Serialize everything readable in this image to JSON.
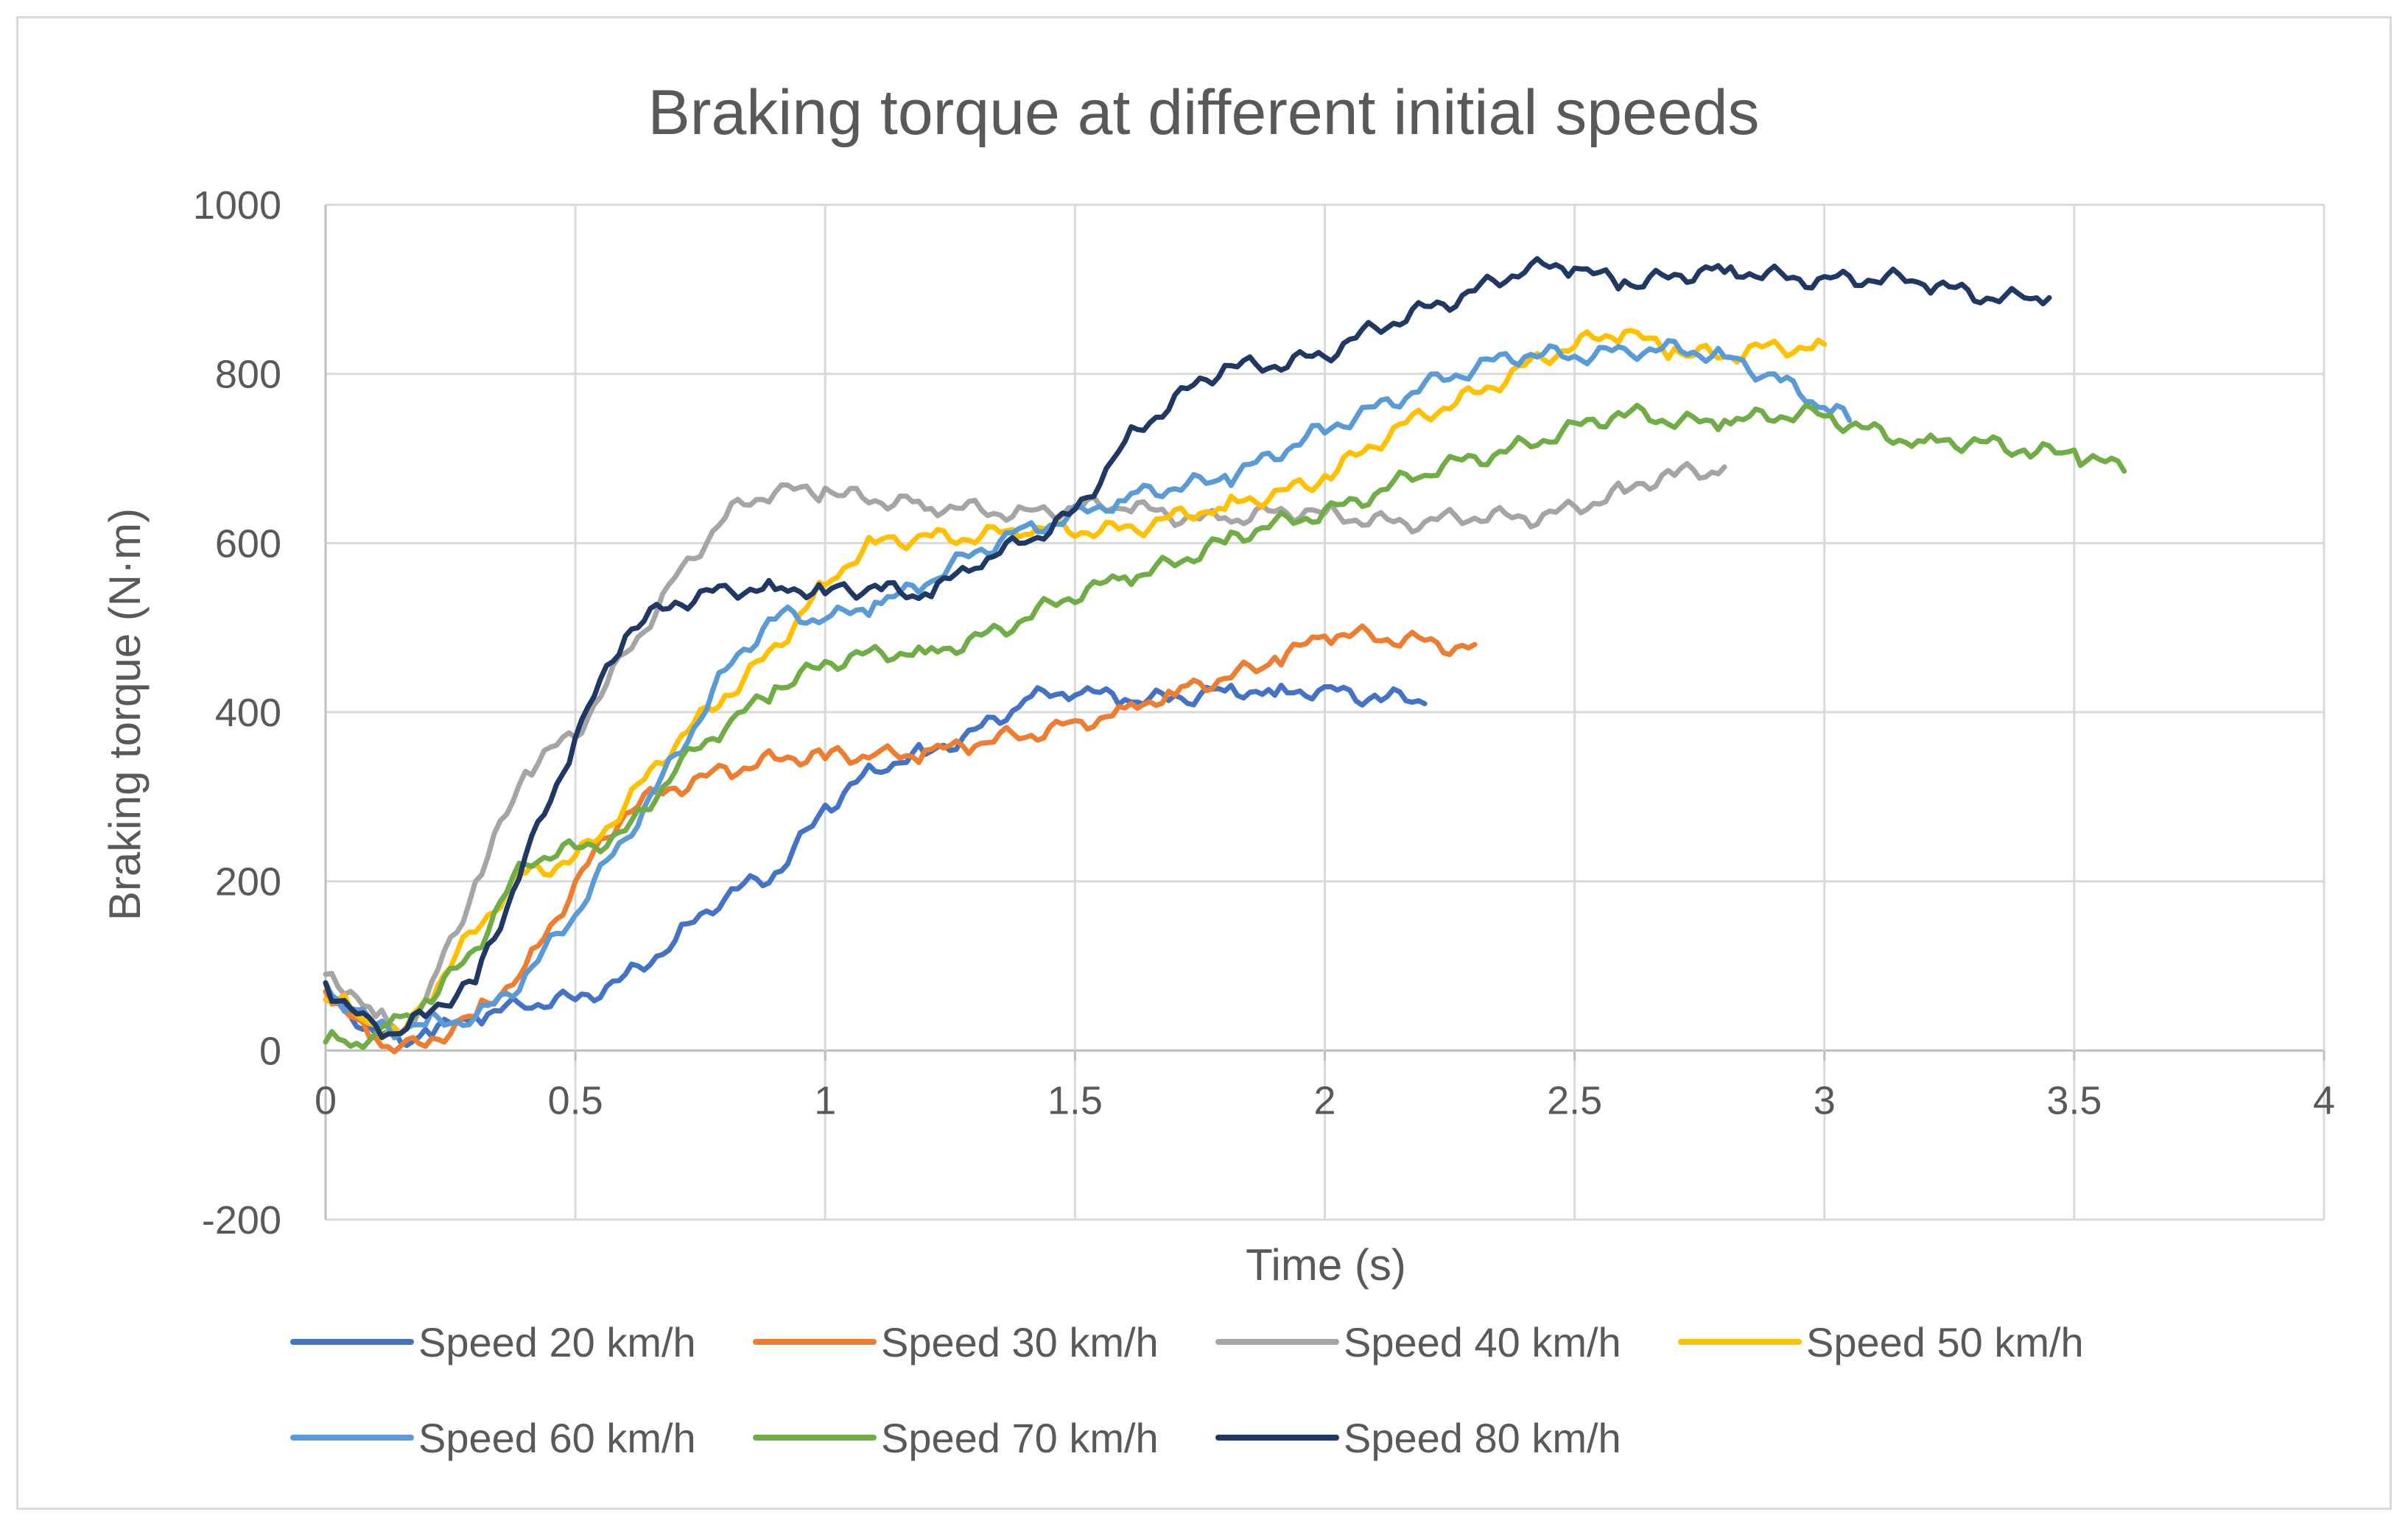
{
  "chart_data": {
    "type": "line",
    "title": "Braking torque at different initial speeds",
    "xlabel": "Time (s)",
    "ylabel": "Braking torque (N·m)",
    "xlim": [
      0,
      4
    ],
    "ylim": [
      -200,
      1000
    ],
    "x_ticks": [
      0,
      0.5,
      1,
      1.5,
      2,
      2.5,
      3,
      3.5,
      4
    ],
    "y_ticks": [
      -200,
      0,
      200,
      400,
      600,
      800,
      1000
    ],
    "x_tick_labels": [
      "0",
      "0.5",
      "1",
      "1.5",
      "2",
      "2.5",
      "3",
      "3.5",
      "4"
    ],
    "y_tick_labels": [
      "-200",
      "0",
      "200",
      "400",
      "600",
      "800",
      "1000"
    ],
    "grid": true,
    "legend_position": "bottom",
    "series": [
      {
        "name": "Speed 20 km/h",
        "color": "#4472c4",
        "x": [
          0,
          0.05,
          0.1,
          0.15,
          0.2,
          0.3,
          0.4,
          0.5,
          0.6,
          0.7,
          0.8,
          0.9,
          1.0,
          1.1,
          1.2,
          1.3,
          1.4,
          1.5,
          1.6,
          1.7,
          1.8,
          1.9,
          2.0,
          2.1,
          2.2
        ],
        "y": [
          60,
          40,
          20,
          10,
          25,
          40,
          50,
          60,
          90,
          130,
          180,
          210,
          290,
          330,
          350,
          380,
          415,
          420,
          415,
          420,
          425,
          420,
          430,
          420,
          410
        ]
      },
      {
        "name": "Speed 30 km/h",
        "color": "#ed7d31",
        "x": [
          0,
          0.05,
          0.1,
          0.15,
          0.2,
          0.3,
          0.4,
          0.5,
          0.6,
          0.7,
          0.8,
          0.9,
          1.0,
          1.1,
          1.2,
          1.3,
          1.4,
          1.5,
          1.6,
          1.7,
          1.8,
          1.9,
          2.0,
          2.1,
          2.2,
          2.3
        ],
        "y": [
          70,
          40,
          15,
          5,
          5,
          40,
          100,
          200,
          280,
          310,
          335,
          345,
          345,
          350,
          355,
          360,
          370,
          390,
          405,
          420,
          440,
          465,
          490,
          485,
          485,
          480
        ]
      },
      {
        "name": "Speed 40 km/h",
        "color": "#a5a5a5",
        "x": [
          0,
          0.05,
          0.1,
          0.15,
          0.2,
          0.3,
          0.4,
          0.5,
          0.6,
          0.7,
          0.8,
          0.9,
          1.0,
          1.2,
          1.4,
          1.6,
          1.8,
          2.0,
          2.2,
          2.4,
          2.6,
          2.7,
          2.8
        ],
        "y": [
          90,
          70,
          40,
          20,
          60,
          200,
          330,
          370,
          470,
          560,
          630,
          660,
          665,
          640,
          640,
          640,
          630,
          635,
          625,
          630,
          660,
          680,
          690
        ]
      },
      {
        "name": "Speed 50 km/h",
        "color": "#ffc000",
        "x": [
          0,
          0.05,
          0.1,
          0.15,
          0.2,
          0.3,
          0.4,
          0.5,
          0.6,
          0.7,
          0.8,
          0.9,
          1.0,
          1.1,
          1.2,
          1.4,
          1.6,
          1.8,
          2.0,
          2.2,
          2.4,
          2.6,
          2.7,
          2.8,
          3.0
        ],
        "y": [
          60,
          50,
          30,
          20,
          60,
          140,
          210,
          230,
          290,
          360,
          420,
          480,
          550,
          600,
          610,
          610,
          620,
          640,
          680,
          750,
          810,
          850,
          830,
          820,
          835
        ]
      },
      {
        "name": "Speed 60 km/h",
        "color": "#5b9bd5",
        "x": [
          0,
          0.05,
          0.1,
          0.15,
          0.2,
          0.3,
          0.4,
          0.5,
          0.6,
          0.7,
          0.8,
          0.9,
          1.0,
          1.1,
          1.2,
          1.4,
          1.6,
          1.8,
          2.0,
          2.2,
          2.4,
          2.6,
          2.8,
          2.9,
          3.0,
          3.05
        ],
        "y": [
          80,
          50,
          30,
          20,
          30,
          40,
          90,
          160,
          250,
          350,
          450,
          510,
          510,
          530,
          550,
          620,
          650,
          680,
          730,
          790,
          820,
          830,
          820,
          800,
          760,
          745
        ]
      },
      {
        "name": "Speed 70 km/h",
        "color": "#70ad47",
        "x": [
          0,
          0.05,
          0.1,
          0.15,
          0.2,
          0.3,
          0.4,
          0.5,
          0.6,
          0.7,
          0.8,
          0.9,
          1.0,
          1.2,
          1.4,
          1.6,
          1.8,
          2.0,
          2.2,
          2.4,
          2.6,
          2.8,
          3.0,
          3.2,
          3.4,
          3.5,
          3.6
        ],
        "y": [
          10,
          5,
          20,
          40,
          60,
          120,
          220,
          240,
          260,
          330,
          380,
          430,
          460,
          470,
          510,
          560,
          600,
          640,
          680,
          720,
          750,
          745,
          750,
          720,
          710,
          710,
          685
        ]
      },
      {
        "name": "Speed 80 km/h",
        "color": "#203864",
        "x": [
          0,
          0.05,
          0.1,
          0.15,
          0.2,
          0.3,
          0.4,
          0.5,
          0.6,
          0.7,
          0.8,
          0.9,
          1.0,
          1.1,
          1.2,
          1.3,
          1.4,
          1.5,
          1.6,
          1.8,
          2.0,
          2.2,
          2.4,
          2.5,
          2.6,
          2.8,
          3.0,
          3.2,
          3.4,
          3.45
        ],
        "y": [
          80,
          50,
          30,
          20,
          40,
          80,
          230,
          370,
          490,
          530,
          550,
          545,
          540,
          550,
          540,
          570,
          600,
          640,
          720,
          810,
          820,
          880,
          920,
          925,
          910,
          920,
          915,
          905,
          890,
          890
        ]
      }
    ]
  }
}
